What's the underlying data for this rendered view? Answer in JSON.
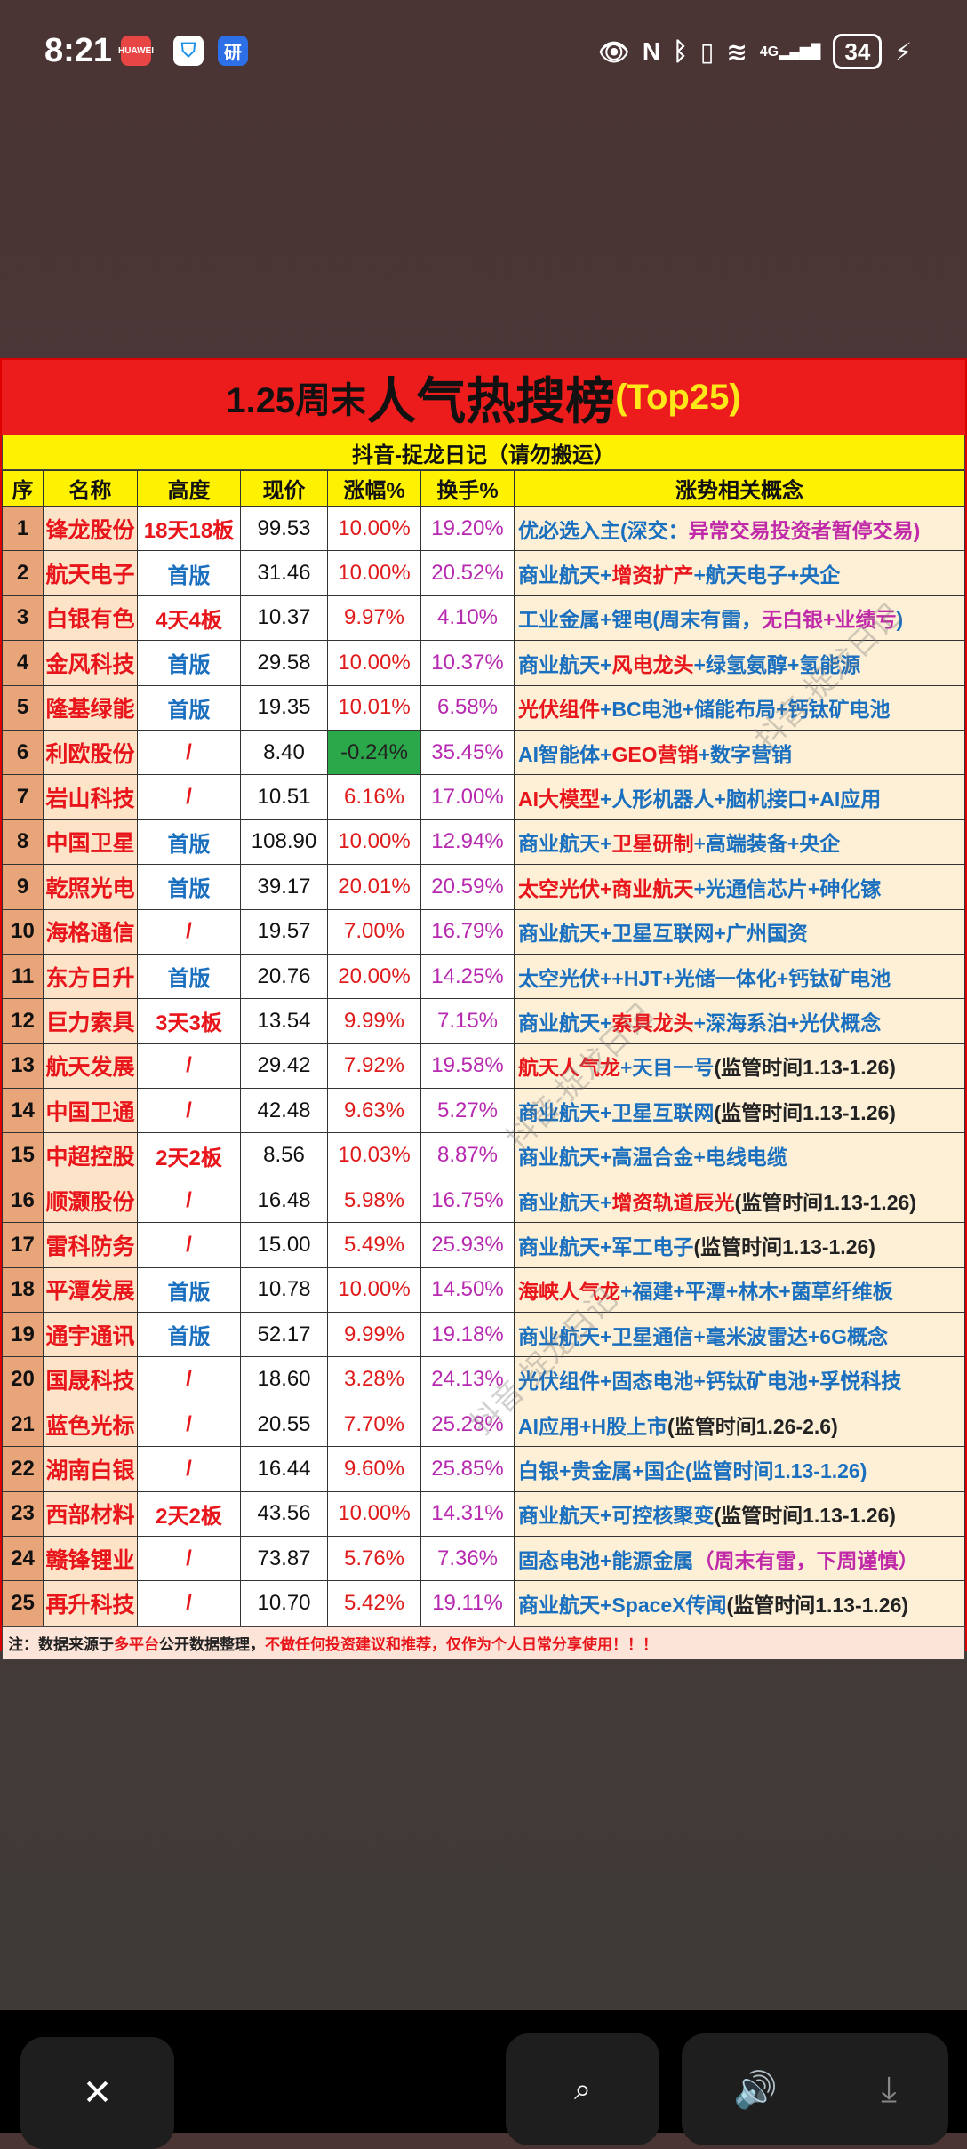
{
  "status_bar": {
    "time": "8:21",
    "apps": [
      "HUAWEI",
      "shield",
      "研"
    ],
    "icons": [
      "eye-icon",
      "nfc-icon",
      "bluetooth-icon",
      "vibrate-icon",
      "wifi-6-icon",
      "4g-signal-icon"
    ],
    "battery": "34"
  },
  "sheet": {
    "title_prefix": "1.25周末",
    "title_main": "人气热搜榜",
    "title_suffix": "(Top25)",
    "subtitle": "抖音-捉龙日记（请勿搬运）",
    "headers": [
      "序",
      "名称",
      "高度",
      "现价",
      "涨幅%",
      "换手%",
      "涨势相关概念"
    ],
    "colors": {
      "blue": "#1a6fbf",
      "red": "#e8151b",
      "magenta": "#c02aa8",
      "green": "#2aa84a",
      "yellow": "#fff200"
    },
    "rows": [
      {
        "seq": "1",
        "name": "锋龙股份",
        "height": "18天18板",
        "price": "99.53",
        "change": "10.00%",
        "turnover": "19.20%",
        "concept": [
          [
            "优必选入主(深交：",
            "b"
          ],
          [
            "异常交易投资者暂停交易)",
            "m"
          ]
        ]
      },
      {
        "seq": "2",
        "name": "航天电子",
        "height": "首版",
        "price": "31.46",
        "change": "10.00%",
        "turnover": "20.52%",
        "concept": [
          [
            "商业航天+",
            "b"
          ],
          [
            "增资扩产",
            "r"
          ],
          [
            "+航天电子+央企",
            "b"
          ]
        ]
      },
      {
        "seq": "3",
        "name": "白银有色",
        "height": "4天4板",
        "price": "10.37",
        "change": "9.97%",
        "turnover": "4.10%",
        "concept": [
          [
            "工业金属+锂电(周末有雷，",
            "b"
          ],
          [
            "无白银+业绩亏",
            "m"
          ],
          [
            ")",
            "b"
          ]
        ]
      },
      {
        "seq": "4",
        "name": "金风科技",
        "height": "首版",
        "price": "29.58",
        "change": "10.00%",
        "turnover": "10.37%",
        "concept": [
          [
            "商业航天+",
            "b"
          ],
          [
            "风电龙头",
            "r"
          ],
          [
            "+绿氢氨醇+氢能源",
            "b"
          ]
        ]
      },
      {
        "seq": "5",
        "name": "隆基绿能",
        "height": "首版",
        "price": "19.35",
        "change": "10.01%",
        "turnover": "6.58%",
        "concept": [
          [
            "光伏组件",
            "r"
          ],
          [
            "+BC电池+储能布局+钙钛矿电池",
            "b"
          ]
        ]
      },
      {
        "seq": "6",
        "name": "利欧股份",
        "height": "/",
        "price": "8.40",
        "change": "-0.24%",
        "turnover": "35.45%",
        "concept": [
          [
            "AI智能体+",
            "b"
          ],
          [
            "GEO营销",
            "r"
          ],
          [
            "+数字营销",
            "b"
          ]
        ]
      },
      {
        "seq": "7",
        "name": "岩山科技",
        "height": "/",
        "price": "10.51",
        "change": "6.16%",
        "turnover": "17.00%",
        "concept": [
          [
            "AI大模型",
            "r"
          ],
          [
            "+人形机器人+脑机接口+AI应用",
            "b"
          ]
        ]
      },
      {
        "seq": "8",
        "name": "中国卫星",
        "height": "首版",
        "price": "108.90",
        "change": "10.00%",
        "turnover": "12.94%",
        "concept": [
          [
            "商业航天+",
            "b"
          ],
          [
            "卫星研制",
            "r"
          ],
          [
            "+高端装备+央企",
            "b"
          ]
        ]
      },
      {
        "seq": "9",
        "name": "乾照光电",
        "height": "首版",
        "price": "39.17",
        "change": "20.01%",
        "turnover": "20.59%",
        "concept": [
          [
            "太空光伏+商业航天",
            "r"
          ],
          [
            "+光通信芯片+砷化镓",
            "b"
          ]
        ]
      },
      {
        "seq": "10",
        "name": "海格通信",
        "height": "/",
        "price": "19.57",
        "change": "7.00%",
        "turnover": "16.79%",
        "concept": [
          [
            "商业航天+卫星互联网+广州国资",
            "b"
          ]
        ]
      },
      {
        "seq": "11",
        "name": "东方日升",
        "height": "首版",
        "price": "20.76",
        "change": "20.00%",
        "turnover": "14.25%",
        "concept": [
          [
            "太空光伏++HJT+光储一体化+钙钛矿电池",
            "b"
          ]
        ]
      },
      {
        "seq": "12",
        "name": "巨力索具",
        "height": "3天3板",
        "price": "13.54",
        "change": "9.99%",
        "turnover": "7.15%",
        "concept": [
          [
            "商业航天+",
            "b"
          ],
          [
            "索具龙头",
            "r"
          ],
          [
            "+深海系泊+光伏概念",
            "b"
          ]
        ]
      },
      {
        "seq": "13",
        "name": "航天发展",
        "height": "/",
        "price": "29.42",
        "change": "7.92%",
        "turnover": "19.58%",
        "concept": [
          [
            "航天人气龙",
            "r"
          ],
          [
            "+天目一号",
            "b"
          ],
          [
            "(监管时间1.13-1.26)",
            "k"
          ]
        ]
      },
      {
        "seq": "14",
        "name": "中国卫通",
        "height": "/",
        "price": "42.48",
        "change": "9.63%",
        "turnover": "5.27%",
        "concept": [
          [
            "商业航天+卫星互联网",
            "b"
          ],
          [
            "(监管时间1.13-1.26)",
            "k"
          ]
        ]
      },
      {
        "seq": "15",
        "name": "中超控股",
        "height": "2天2板",
        "price": "8.56",
        "change": "10.03%",
        "turnover": "8.87%",
        "concept": [
          [
            "商业航天+高温合金+电线电缆",
            "b"
          ]
        ]
      },
      {
        "seq": "16",
        "name": "顺灏股份",
        "height": "/",
        "price": "16.48",
        "change": "5.98%",
        "turnover": "16.75%",
        "concept": [
          [
            "商业航天+",
            "b"
          ],
          [
            "增资轨道辰光",
            "r"
          ],
          [
            "(监管时间1.13-1.26)",
            "k"
          ]
        ]
      },
      {
        "seq": "17",
        "name": "雷科防务",
        "height": "/",
        "price": "15.00",
        "change": "5.49%",
        "turnover": "25.93%",
        "concept": [
          [
            "商业航天+军工电子",
            "b"
          ],
          [
            "(监管时间1.13-1.26)",
            "k"
          ]
        ]
      },
      {
        "seq": "18",
        "name": "平潭发展",
        "height": "首版",
        "price": "10.78",
        "change": "10.00%",
        "turnover": "14.50%",
        "concept": [
          [
            "海峡人气龙",
            "r"
          ],
          [
            "+福建+平潭+林木+菌草纤维板",
            "b"
          ]
        ]
      },
      {
        "seq": "19",
        "name": "通宇通讯",
        "height": "首版",
        "price": "52.17",
        "change": "9.99%",
        "turnover": "19.18%",
        "concept": [
          [
            "商业航天+卫星通信+毫米波雷达+6G概念",
            "b"
          ]
        ]
      },
      {
        "seq": "20",
        "name": "国晟科技",
        "height": "/",
        "price": "18.60",
        "change": "3.28%",
        "turnover": "24.13%",
        "concept": [
          [
            "光伏组件+固态电池+钙钛矿电池+孚悦科技",
            "b"
          ]
        ]
      },
      {
        "seq": "21",
        "name": "蓝色光标",
        "height": "/",
        "price": "20.55",
        "change": "7.70%",
        "turnover": "25.28%",
        "concept": [
          [
            "AI应用+H股上市",
            "b"
          ],
          [
            "(监管时间1.26-2.6)",
            "k"
          ]
        ]
      },
      {
        "seq": "22",
        "name": "湖南白银",
        "height": "/",
        "price": "16.44",
        "change": "9.60%",
        "turnover": "25.85%",
        "concept": [
          [
            "白银+贵金属+国企(监管时间1.13-1.26)",
            "b"
          ]
        ]
      },
      {
        "seq": "23",
        "name": "西部材料",
        "height": "2天2板",
        "price": "43.56",
        "change": "10.00%",
        "turnover": "14.31%",
        "concept": [
          [
            "商业航天+可控核聚变",
            "b"
          ],
          [
            "(监管时间1.13-1.26)",
            "k"
          ]
        ]
      },
      {
        "seq": "24",
        "name": "赣锋锂业",
        "height": "/",
        "price": "73.87",
        "change": "5.76%",
        "turnover": "7.36%",
        "concept": [
          [
            "固态电池+能源金属",
            "b"
          ],
          [
            "（周末有雷，下周谨慎）",
            "m"
          ]
        ]
      },
      {
        "seq": "25",
        "name": "再升科技",
        "height": "/",
        "price": "10.70",
        "change": "5.42%",
        "turnover": "19.11%",
        "concept": [
          [
            "商业航天+SpaceX传闻",
            "b"
          ],
          [
            "(监管时间1.13-1.26)",
            "k"
          ]
        ]
      }
    ],
    "footer": {
      "p1": "注：数据来源于",
      "p2": "多平台",
      "p3": "公开数据整理，",
      "p4": "不做任何投资建议和推荐，仅作为个人日常分享使用！！！"
    },
    "watermark": "抖音-捉龙日记"
  },
  "bottom_bar": {
    "buttons": [
      "close-icon",
      "scan-search-icon",
      "speaker-icon",
      "download-icon"
    ]
  }
}
